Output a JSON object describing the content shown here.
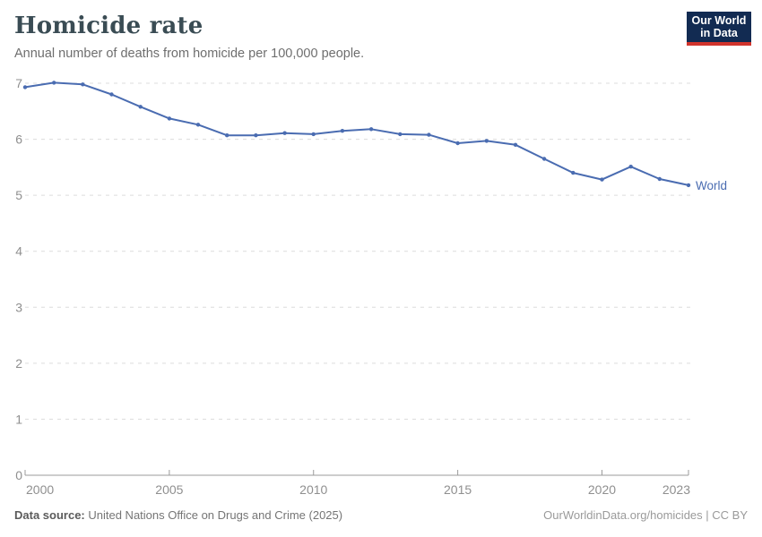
{
  "header": {
    "title": "Homicide rate",
    "subtitle": "Annual number of deaths from homicide per 100,000 people.",
    "logo": {
      "line1": "Our World",
      "line2": "in Data"
    }
  },
  "colors": {
    "line": "#4a6cb1",
    "logo_bg": "#122b52",
    "logo_accent": "#d1342c",
    "gridline": "#dcdcdc",
    "axis": "#9b9b9b",
    "tick_label": "#8f8f8f"
  },
  "chart_data": {
    "type": "line",
    "title": "Homicide rate",
    "subtitle": "Annual number of deaths from homicide per 100,000 people.",
    "xlabel": "",
    "ylabel": "",
    "xlim": [
      2000,
      2023
    ],
    "ylim": [
      0,
      7
    ],
    "grid": "horizontal-dashed",
    "legend_position": "end-of-line-label",
    "x_ticks": [
      2000,
      2005,
      2010,
      2015,
      2020,
      2023
    ],
    "y_ticks": [
      0,
      1,
      2,
      3,
      4,
      5,
      6,
      7
    ],
    "x": [
      2000,
      2001,
      2002,
      2003,
      2004,
      2005,
      2006,
      2007,
      2008,
      2009,
      2010,
      2011,
      2012,
      2013,
      2014,
      2015,
      2016,
      2017,
      2018,
      2019,
      2020,
      2021,
      2022,
      2023
    ],
    "series": [
      {
        "name": "World",
        "color": "#4a6cb1",
        "values": [
          6.93,
          7.01,
          6.98,
          6.8,
          6.58,
          6.37,
          6.26,
          6.07,
          6.07,
          6.11,
          6.09,
          6.15,
          6.18,
          6.09,
          6.08,
          5.93,
          5.97,
          5.9,
          5.65,
          5.4,
          5.28,
          5.51,
          5.29,
          5.18
        ]
      }
    ]
  },
  "footer": {
    "source_label": "Data source:",
    "source_text": " United Nations Office on Drugs and Crime (2025)",
    "rights": "OurWorldinData.org/homicides | CC BY"
  }
}
